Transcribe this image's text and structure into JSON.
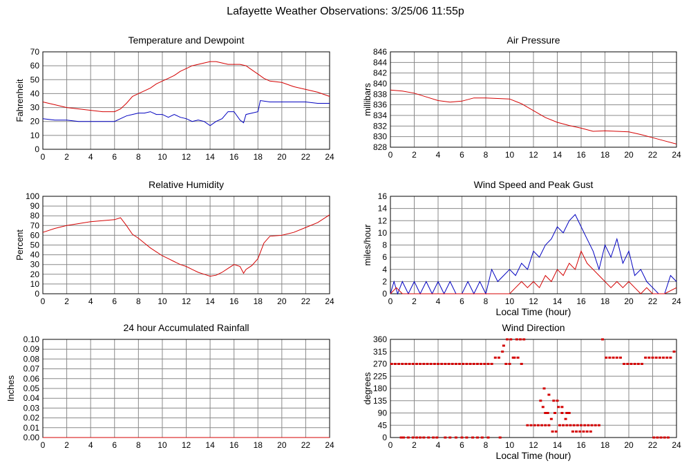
{
  "page_title": "Lafayette Weather Observations: 3/25/06 11:55p",
  "chart_data": [
    {
      "id": "temp",
      "type": "line",
      "title": "Temperature and Dewpoint",
      "xlabel": "",
      "ylabel": "Fahrenheit",
      "xlim": [
        0,
        24
      ],
      "ylim": [
        0,
        70
      ],
      "xticks": [
        0,
        2,
        4,
        6,
        8,
        10,
        12,
        14,
        16,
        18,
        20,
        22,
        24
      ],
      "yticks": [
        0,
        10,
        20,
        30,
        40,
        50,
        60,
        70
      ],
      "grid": true,
      "series": [
        {
          "color": "#d40000",
          "x": [
            0,
            1,
            2,
            3,
            4,
            5,
            6,
            6.5,
            7,
            7.5,
            8,
            8.5,
            9,
            9.5,
            10,
            10.5,
            11,
            11.5,
            12,
            12.5,
            13,
            13.5,
            14,
            14.5,
            15,
            15.5,
            16,
            16.5,
            17,
            17.5,
            18,
            18.5,
            19,
            20,
            21,
            22,
            23,
            24
          ],
          "y": [
            34,
            32,
            30,
            29,
            28,
            27,
            27,
            29,
            33,
            38,
            40,
            42,
            44,
            47,
            49,
            51,
            53,
            56,
            58,
            60,
            61,
            62,
            63,
            63,
            62,
            61,
            61,
            61,
            60,
            57,
            54,
            51,
            49,
            48,
            45,
            43,
            41,
            38
          ]
        },
        {
          "color": "#0000c0",
          "x": [
            0,
            1,
            2,
            3,
            4,
            5,
            6,
            6.5,
            7,
            7.5,
            8,
            8.5,
            9,
            9.5,
            10,
            10.5,
            11,
            11.5,
            12,
            12.5,
            13,
            13.5,
            14,
            14.5,
            15,
            15.5,
            16,
            16.5,
            16.8,
            17,
            17.5,
            18,
            18.2,
            19,
            20,
            21,
            22,
            23,
            24
          ],
          "y": [
            22,
            21,
            21,
            20,
            20,
            20,
            20,
            22,
            24,
            25,
            26,
            26,
            27,
            25,
            25,
            23,
            25,
            23,
            22,
            20,
            21,
            20,
            17,
            20,
            22,
            27,
            27,
            21,
            19,
            25,
            26,
            27,
            35,
            34,
            34,
            34,
            34,
            33,
            33
          ]
        }
      ]
    },
    {
      "id": "pressure",
      "type": "line",
      "title": "Air Pressure",
      "xlabel": "",
      "ylabel": "millibars",
      "xlim": [
        0,
        24
      ],
      "ylim": [
        828,
        846
      ],
      "xticks": [
        0,
        2,
        4,
        6,
        8,
        10,
        12,
        14,
        16,
        18,
        20,
        22,
        24
      ],
      "yticks": [
        828,
        830,
        832,
        834,
        836,
        838,
        840,
        842,
        844,
        846
      ],
      "grid": true,
      "series": [
        {
          "color": "#d40000",
          "x": [
            0,
            1,
            2,
            3,
            4,
            5,
            6,
            7,
            8,
            9,
            10,
            11,
            12,
            13,
            14,
            15,
            16,
            17,
            18,
            19,
            20,
            21,
            22,
            23,
            24
          ],
          "y": [
            838.8,
            838.6,
            838.2,
            837.5,
            836.8,
            836.5,
            836.7,
            837.3,
            837.3,
            837.2,
            837.1,
            836.2,
            834.9,
            833.6,
            832.7,
            832.1,
            831.6,
            831.0,
            831.1,
            831.0,
            830.9,
            830.4,
            829.8,
            829.2,
            828.6
          ]
        }
      ]
    },
    {
      "id": "humidity",
      "type": "line",
      "title": "Relative Humidity",
      "xlabel": "",
      "ylabel": "Percent",
      "xlim": [
        0,
        24
      ],
      "ylim": [
        0,
        100
      ],
      "xticks": [
        0,
        2,
        4,
        6,
        8,
        10,
        12,
        14,
        16,
        18,
        20,
        22,
        24
      ],
      "yticks": [
        0,
        10,
        20,
        30,
        40,
        50,
        60,
        70,
        80,
        90,
        100
      ],
      "grid": true,
      "series": [
        {
          "color": "#d40000",
          "x": [
            0,
            1,
            2,
            3,
            4,
            5,
            6,
            6.5,
            7,
            7.5,
            8,
            8.5,
            9,
            9.5,
            10,
            10.5,
            11,
            11.5,
            12,
            12.5,
            13,
            13.5,
            14,
            14.5,
            15,
            15.5,
            16,
            16.5,
            16.8,
            17,
            17.5,
            18,
            18.5,
            19,
            20,
            21,
            22,
            23,
            24
          ],
          "y": [
            63,
            67,
            70,
            72,
            74,
            75,
            76,
            78,
            70,
            61,
            57,
            52,
            47,
            43,
            39,
            36,
            33,
            30,
            28,
            25,
            22,
            20,
            18,
            19,
            22,
            26,
            30,
            28,
            21,
            25,
            29,
            36,
            52,
            59,
            60,
            63,
            68,
            73,
            81
          ]
        }
      ]
    },
    {
      "id": "wind",
      "type": "line",
      "title": "Wind Speed and Peak Gust",
      "xlabel": "Local Time (hour)",
      "ylabel": "miles/hour",
      "xlim": [
        0,
        24
      ],
      "ylim": [
        0,
        16
      ],
      "xticks": [
        0,
        2,
        4,
        6,
        8,
        10,
        12,
        14,
        16,
        18,
        20,
        22,
        24
      ],
      "yticks": [
        0,
        2,
        4,
        6,
        8,
        10,
        12,
        14,
        16
      ],
      "grid": true,
      "series": [
        {
          "color": "#0000c0",
          "x": [
            0,
            0.3,
            0.6,
            1,
            1.5,
            2,
            2.5,
            3,
            3.5,
            4,
            4.5,
            5,
            5.5,
            6,
            6.5,
            7,
            7.5,
            8,
            8.5,
            9,
            9.5,
            10,
            10.5,
            11,
            11.5,
            12,
            12.5,
            13,
            13.5,
            14,
            14.5,
            15,
            15.5,
            16,
            16.5,
            17,
            17.5,
            18,
            18.5,
            19,
            19.5,
            20,
            20.5,
            21,
            21.5,
            22,
            22.5,
            23,
            23.5,
            24
          ],
          "y": [
            0,
            2,
            0,
            2,
            0,
            2,
            0,
            2,
            0,
            2,
            0,
            2,
            0,
            0,
            2,
            0,
            2,
            0,
            4,
            2,
            3,
            4,
            3,
            5,
            4,
            7,
            6,
            8,
            9,
            11,
            10,
            12,
            13,
            11,
            9,
            7,
            4,
            8,
            6,
            9,
            5,
            7,
            3,
            4,
            2,
            1,
            0,
            0,
            3,
            2
          ]
        },
        {
          "color": "#d40000",
          "x": [
            0,
            0.5,
            1,
            1.5,
            2,
            3,
            4,
            5,
            6,
            7,
            8,
            8.5,
            9,
            9.5,
            10,
            10.5,
            11,
            11.5,
            12,
            12.5,
            13,
            13.5,
            14,
            14.5,
            15,
            15.5,
            16,
            16.5,
            17,
            17.5,
            18,
            18.5,
            19,
            19.5,
            20,
            20.5,
            21,
            21.5,
            22,
            23,
            24
          ],
          "y": [
            0,
            1,
            0,
            0,
            0,
            0,
            0,
            0,
            0,
            0,
            0,
            0,
            0,
            0,
            0,
            1,
            2,
            1,
            2,
            1,
            3,
            2,
            4,
            3,
            5,
            4,
            7,
            5,
            4,
            3,
            2,
            1,
            2,
            1,
            2,
            1,
            0,
            1,
            0,
            0,
            1
          ]
        }
      ]
    },
    {
      "id": "rain",
      "type": "line",
      "title": "24 hour Accumulated Rainfall",
      "xlabel": "",
      "ylabel": "Inches",
      "xlim": [
        0,
        24
      ],
      "ylim": [
        0,
        0.1
      ],
      "xticks": [
        0,
        2,
        4,
        6,
        8,
        10,
        12,
        14,
        16,
        18,
        20,
        22,
        24
      ],
      "yticks": [
        "0.00",
        "0.01",
        "0.02",
        "0.03",
        "0.04",
        "0.05",
        "0.06",
        "0.07",
        "0.08",
        "0.09",
        "0.10"
      ],
      "grid": true,
      "series": [
        {
          "color": "#d40000",
          "x": [
            0,
            24
          ],
          "y": [
            0,
            0
          ]
        }
      ]
    },
    {
      "id": "direction",
      "type": "scatter",
      "title": "Wind Direction",
      "xlabel": "Local Time (hour)",
      "ylabel": "degrees",
      "xlim": [
        0,
        24
      ],
      "ylim": [
        0,
        360
      ],
      "xticks": [
        0,
        2,
        4,
        6,
        8,
        10,
        12,
        14,
        16,
        18,
        20,
        22,
        24
      ],
      "yticks": [
        0,
        45,
        90,
        135,
        180,
        225,
        270,
        315,
        360
      ],
      "grid": true,
      "series": [
        {
          "color": "#d40000",
          "x": [
            0.1,
            0.4,
            0.7,
            1.0,
            1.3,
            1.6,
            1.9,
            2.2,
            2.5,
            2.8,
            3.1,
            3.4,
            3.7,
            4.0,
            4.3,
            4.6,
            4.9,
            5.2,
            5.5,
            5.8,
            6.1,
            6.4,
            6.7,
            7.0,
            7.3,
            7.6,
            7.9,
            8.2,
            8.5,
            8.8,
            9.1,
            9.4,
            9.7,
            10.0,
            10.3,
            10.6,
            10.9,
            11.2,
            11.5,
            11.8,
            12.1,
            12.4,
            12.7,
            13.0,
            13.3,
            13.6,
            13.9,
            14.2,
            14.5,
            14.8,
            15.1,
            15.4,
            15.7,
            16.0,
            16.3,
            16.6,
            16.9,
            17.2,
            17.5,
            17.8,
            18.1,
            18.4,
            18.7,
            19.0,
            19.3,
            19.6,
            19.9,
            20.2,
            20.5,
            20.8,
            21.1,
            21.4,
            21.7,
            22.0,
            22.3,
            22.6,
            22.9,
            23.2,
            23.5,
            23.8,
            0.9,
            1.1,
            1.5,
            1.9,
            2.2,
            2.5,
            2.8,
            3.2,
            3.6,
            3.9,
            4.6,
            5.0,
            5.5,
            6.0,
            6.4,
            6.9,
            7.3,
            7.7,
            8.2,
            9.2,
            12.6,
            12.8,
            13.0,
            13.2,
            13.5,
            13.8,
            14.1,
            14.4,
            14.7,
            15.0,
            15.3,
            15.6,
            15.9,
            16.2,
            16.5,
            16.8,
            12.9,
            13.3,
            13.7,
            14.0,
            14.4,
            14.8,
            22.1,
            22.4,
            22.7,
            23.0,
            23.3,
            9.5,
            9.8,
            10.1,
            10.4,
            10.7,
            11.0
          ],
          "y": [
            270,
            270,
            270,
            270,
            270,
            270,
            270,
            270,
            270,
            270,
            270,
            270,
            270,
            270,
            270,
            270,
            270,
            270,
            270,
            270,
            270,
            270,
            270,
            270,
            270,
            270,
            270,
            270,
            270,
            293,
            293,
            315,
            270,
            270,
            293,
            360,
            360,
            360,
            45,
            45,
            45,
            45,
            45,
            45,
            45,
            22,
            22,
            45,
            45,
            45,
            45,
            45,
            45,
            45,
            45,
            45,
            45,
            45,
            45,
            360,
            293,
            293,
            293,
            293,
            293,
            270,
            270,
            270,
            270,
            270,
            270,
            293,
            293,
            293,
            293,
            293,
            293,
            293,
            293,
            315,
            0,
            0,
            0,
            0,
            0,
            0,
            0,
            0,
            0,
            0,
            0,
            0,
            0,
            0,
            0,
            0,
            0,
            0,
            0,
            0,
            135,
            112,
            90,
            90,
            68,
            90,
            112,
            90,
            68,
            90,
            22,
            22,
            22,
            22,
            22,
            22,
            180,
            157,
            135,
            135,
            112,
            90,
            0,
            0,
            0,
            0,
            0,
            337,
            360,
            360,
            293,
            293,
            270
          ]
        }
      ]
    }
  ]
}
